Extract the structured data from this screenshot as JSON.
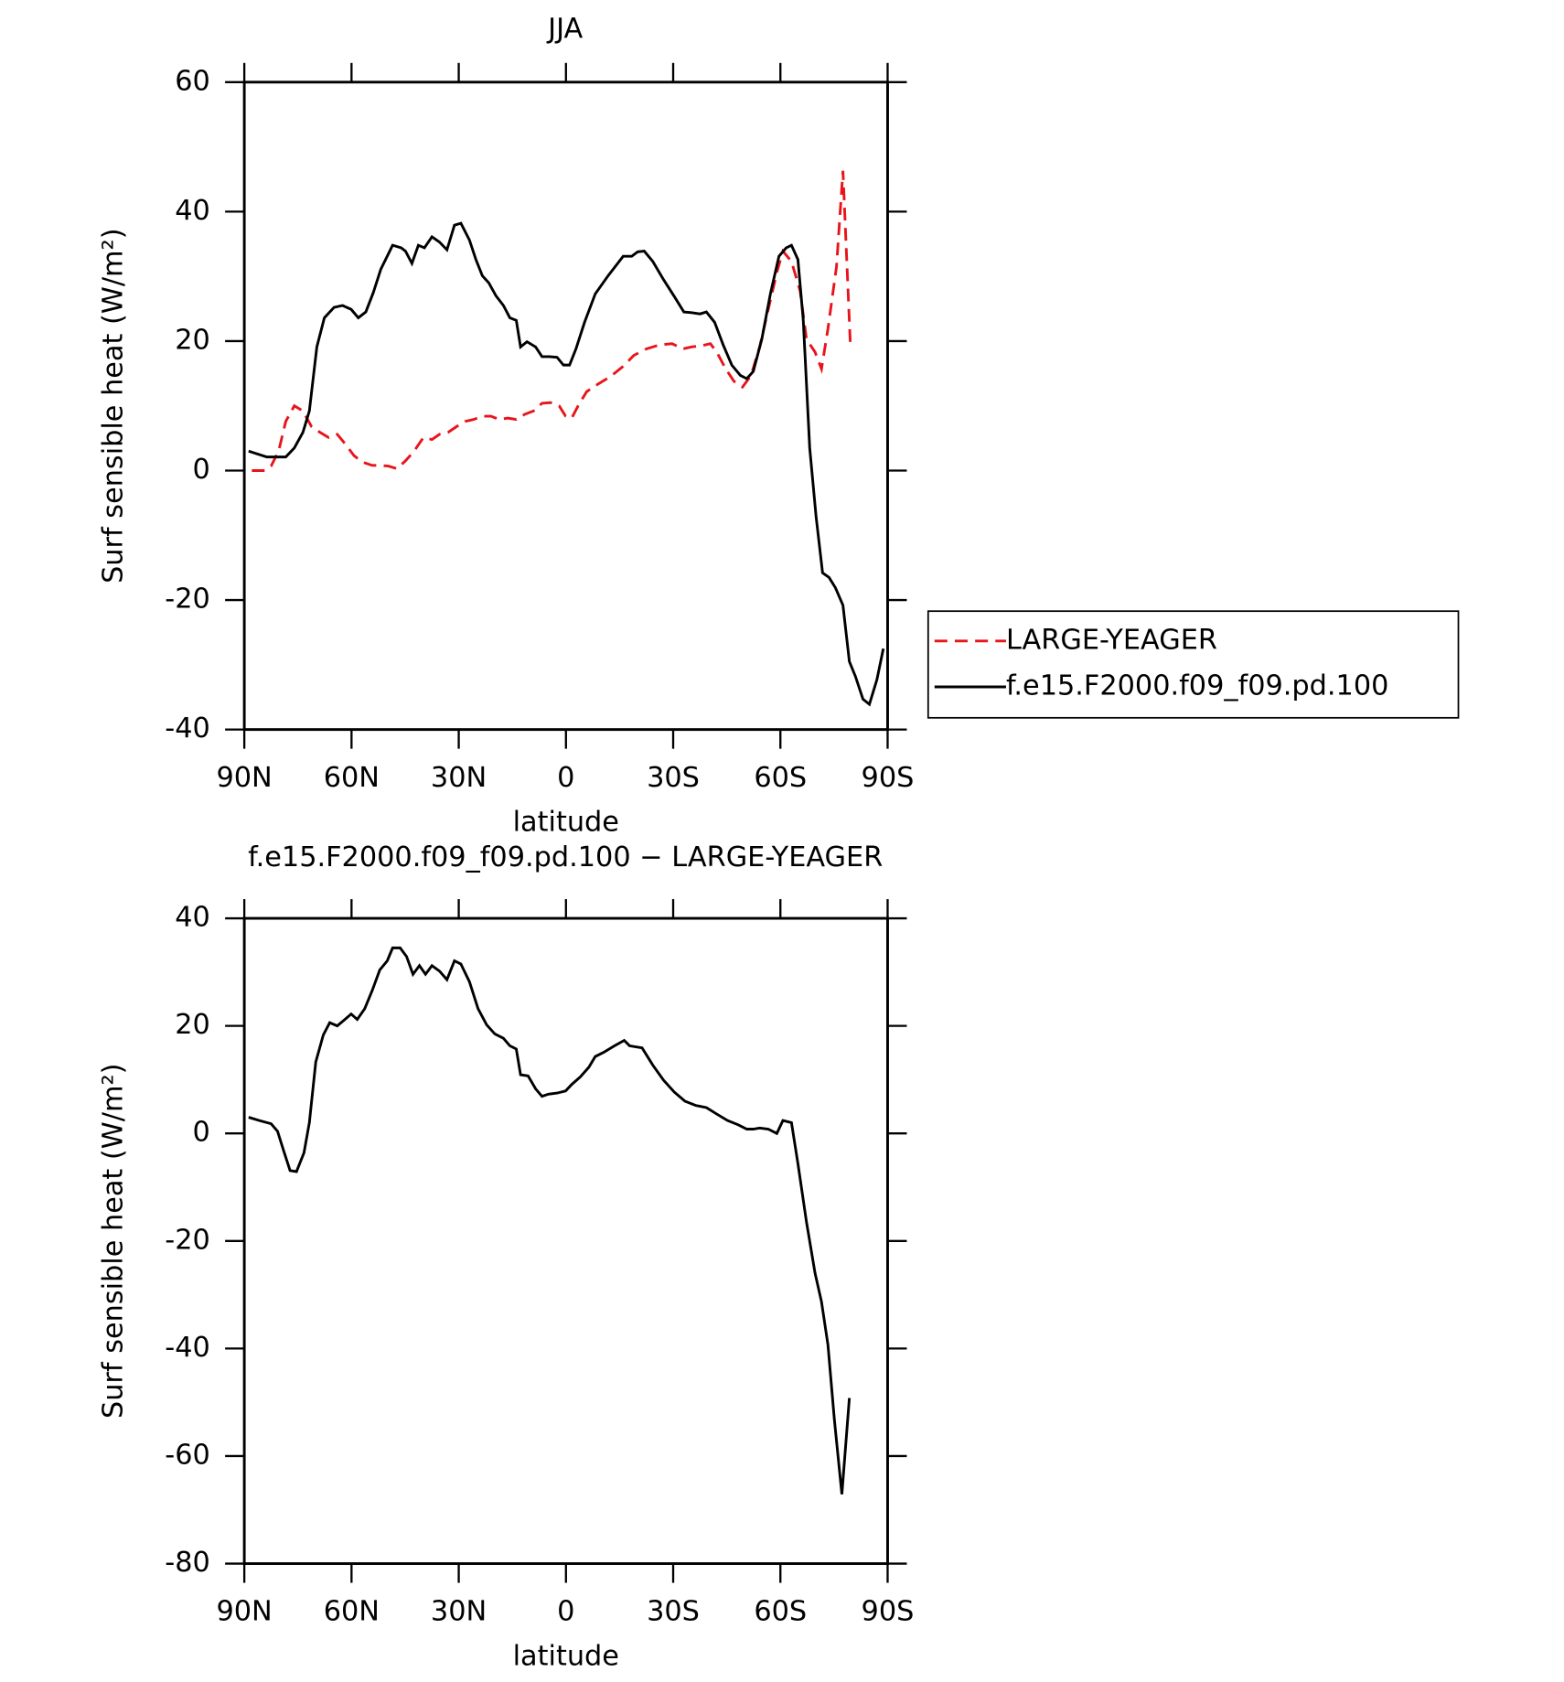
{
  "chart_data": [
    {
      "type": "line",
      "title": "JJA",
      "x_label": "latitude",
      "y_label": "Surf sensible heat (W/m²)",
      "xlim": [
        90,
        -90
      ],
      "xticks": [
        {
          "value": 90,
          "label": "90N"
        },
        {
          "value": 60,
          "label": "60N"
        },
        {
          "value": 30,
          "label": "30N"
        },
        0,
        {
          "value": -30,
          "label": "30S"
        },
        {
          "value": -60,
          "label": "60S"
        },
        {
          "value": -90,
          "label": "90S"
        }
      ],
      "ylim": [
        -40,
        60
      ],
      "yticks": [
        -40,
        -20,
        0,
        20,
        40,
        60
      ],
      "legend": "outside-right",
      "series": [
        {
          "name": "LARGE-YEAGER",
          "color": "#e8141b",
          "style": "dashed",
          "x": [
            87.9,
            84.3,
            82.5,
            80.4,
            78.4,
            76.0,
            73.6,
            71.2,
            68.8,
            66.4,
            64.0,
            61.6,
            59.3,
            56.9,
            54.2,
            52.1,
            49.7,
            47.3,
            44.9,
            42.5,
            39.9,
            37.5,
            35.4,
            33.0,
            30.6,
            28.2,
            25.8,
            23.4,
            21.0,
            18.7,
            16.3,
            13.9,
            11.5,
            9.1,
            6.7,
            4.3,
            1.9,
            0.1,
            -1.6,
            -3.4,
            -5.8,
            -8.8,
            -12.4,
            -16.0,
            -19.0,
            -22.5,
            -26.1,
            -29.7,
            -32.7,
            -35.1,
            -38.1,
            -40.4,
            -42.2,
            -44.6,
            -47.0,
            -49.4,
            -51.8,
            -54.2,
            -56.6,
            -59.0,
            -60.7,
            -63.1,
            -65.5,
            -67.3,
            -69.7,
            -71.5,
            -73.3,
            -75.7,
            -77.5,
            -79.6
          ],
          "values": [
            0,
            0,
            0.7,
            3.0,
            7.6,
            10.0,
            9.2,
            6.8,
            5.9,
            5.1,
            5.6,
            4.0,
            2.3,
            1.3,
            0.8,
            0.8,
            0.7,
            0.3,
            1.5,
            3.0,
            5.1,
            4.8,
            5.6,
            5.9,
            6.8,
            7.6,
            7.9,
            8.4,
            8.4,
            7.9,
            8.1,
            7.9,
            8.7,
            9.2,
            10.4,
            10.5,
            10.0,
            8.4,
            8.1,
            10.0,
            12.2,
            13.3,
            14.5,
            16.1,
            17.8,
            18.8,
            19.4,
            19.6,
            18.8,
            19.1,
            19.3,
            19.6,
            18.3,
            15.8,
            13.8,
            12.9,
            14.7,
            19.1,
            24.9,
            30.6,
            33.9,
            32.3,
            27.8,
            20.3,
            18.3,
            15.7,
            21.9,
            31.5,
            46.3,
            19.1
          ]
        },
        {
          "name": "f.e15.F2000.f09_f09.pd.100",
          "color": "#000000",
          "style": "solid",
          "x": [
            88.8,
            83.7,
            78.4,
            76.0,
            73.6,
            71.8,
            69.7,
            67.6,
            64.9,
            62.5,
            60.1,
            58.1,
            56.0,
            53.9,
            51.8,
            48.5,
            46.1,
            44.9,
            43.1,
            41.3,
            39.6,
            37.5,
            35.4,
            33.3,
            31.2,
            29.4,
            27.0,
            25.2,
            23.4,
            21.6,
            19.6,
            17.5,
            15.7,
            13.9,
            12.7,
            10.9,
            8.5,
            6.7,
            4.6,
            2.5,
            0.7,
            -1.0,
            -2.8,
            -5.2,
            -8.2,
            -11.8,
            -16.0,
            -18.4,
            -20.1,
            -21.9,
            -24.3,
            -27.3,
            -30.3,
            -33.0,
            -35.1,
            -37.5,
            -39.3,
            -41.6,
            -44.0,
            -46.4,
            -48.8,
            -50.6,
            -52.4,
            -54.8,
            -57.2,
            -59.6,
            -61.6,
            -63.1,
            -64.9,
            -66.4,
            -68.2,
            -70.0,
            -71.8,
            -73.6,
            -75.4,
            -77.5,
            -79.3,
            -81.0,
            -83.1,
            -84.9,
            -87.0,
            -88.8
          ],
          "values": [
            3.0,
            2.1,
            2.1,
            3.5,
            5.9,
            9.2,
            19.1,
            23.6,
            25.2,
            25.5,
            24.9,
            23.6,
            24.5,
            27.5,
            31.1,
            34.8,
            34.4,
            33.9,
            32.0,
            34.8,
            34.4,
            36.1,
            35.3,
            34.1,
            37.9,
            38.2,
            35.6,
            32.6,
            30.1,
            29.0,
            27.0,
            25.5,
            23.6,
            23.2,
            19.1,
            19.9,
            19.1,
            17.6,
            17.6,
            17.5,
            16.3,
            16.3,
            18.8,
            22.9,
            27.3,
            30.1,
            33.1,
            33.1,
            33.8,
            33.9,
            32.3,
            29.5,
            26.9,
            24.5,
            24.4,
            24.2,
            24.5,
            22.9,
            19.4,
            16.3,
            14.7,
            14.2,
            15.3,
            20.3,
            27.3,
            33.1,
            34.4,
            34.8,
            32.6,
            23.2,
            3.5,
            -7.2,
            -15.8,
            -16.5,
            -18.1,
            -20.8,
            -29.5,
            -31.8,
            -35.3,
            -36.1,
            -32.3,
            -27.5
          ]
        }
      ]
    },
    {
      "type": "line",
      "title": "f.e15.F2000.f09_f09.pd.100 − LARGE-YEAGER",
      "x_label": "latitude",
      "y_label": "Surf sensible heat (W/m²)",
      "xlim": [
        90,
        -90
      ],
      "xticks": [
        {
          "value": 90,
          "label": "90N"
        },
        {
          "value": 60,
          "label": "60N"
        },
        {
          "value": 30,
          "label": "30N"
        },
        0,
        {
          "value": -30,
          "label": "30S"
        },
        {
          "value": -60,
          "label": "60S"
        },
        {
          "value": -90,
          "label": "90S"
        }
      ],
      "ylim": [
        -80,
        40
      ],
      "yticks": [
        -80,
        -60,
        -40,
        -20,
        0,
        20,
        40
      ],
      "series": [
        {
          "color": "#000000",
          "style": "solid",
          "x": [
            88.8,
            85.8,
            82.5,
            80.7,
            79.0,
            77.2,
            75.4,
            73.3,
            71.8,
            70.0,
            67.9,
            66.1,
            64.0,
            62.2,
            60.1,
            58.4,
            56.3,
            54.2,
            52.1,
            50.0,
            48.5,
            46.4,
            44.6,
            42.8,
            41.0,
            39.3,
            37.5,
            35.4,
            33.3,
            31.2,
            29.4,
            27.0,
            24.6,
            22.2,
            19.9,
            17.5,
            15.7,
            13.9,
            12.7,
            10.6,
            8.5,
            6.7,
            4.9,
            2.5,
            0.1,
            -1.6,
            -4.0,
            -6.4,
            -8.2,
            -10.6,
            -13.6,
            -16.3,
            -17.8,
            -21.3,
            -24.3,
            -27.3,
            -30.3,
            -33.3,
            -36.3,
            -39.3,
            -42.2,
            -45.2,
            -48.2,
            -50.6,
            -52.4,
            -54.2,
            -56.6,
            -59.0,
            -60.7,
            -63.1,
            -64.9,
            -67.3,
            -69.7,
            -71.5,
            -73.3,
            -75.1,
            -77.2,
            -79.3
          ],
          "values": [
            3.0,
            2.4,
            1.8,
            0.4,
            -3.2,
            -6.9,
            -7.1,
            -3.6,
            2.0,
            13.3,
            18.3,
            20.6,
            20.0,
            21.0,
            22.2,
            21.2,
            23.2,
            26.6,
            30.4,
            32.1,
            34.5,
            34.5,
            32.9,
            29.6,
            31.2,
            29.6,
            31.2,
            30.2,
            28.6,
            32.1,
            31.5,
            28.2,
            23.2,
            20.2,
            18.5,
            17.7,
            16.3,
            15.7,
            10.9,
            10.7,
            8.3,
            6.9,
            7.3,
            7.5,
            7.9,
            9.1,
            10.5,
            12.3,
            14.3,
            15.1,
            16.3,
            17.3,
            16.3,
            15.9,
            12.7,
            9.9,
            7.7,
            6.0,
            5.2,
            4.8,
            3.6,
            2.4,
            1.6,
            0.8,
            0.8,
            1.0,
            0.8,
            0,
            2.4,
            2.0,
            -5.6,
            -16.5,
            -26.0,
            -31.3,
            -39.3,
            -53.2,
            -67.1,
            -49.2
          ]
        }
      ]
    }
  ]
}
